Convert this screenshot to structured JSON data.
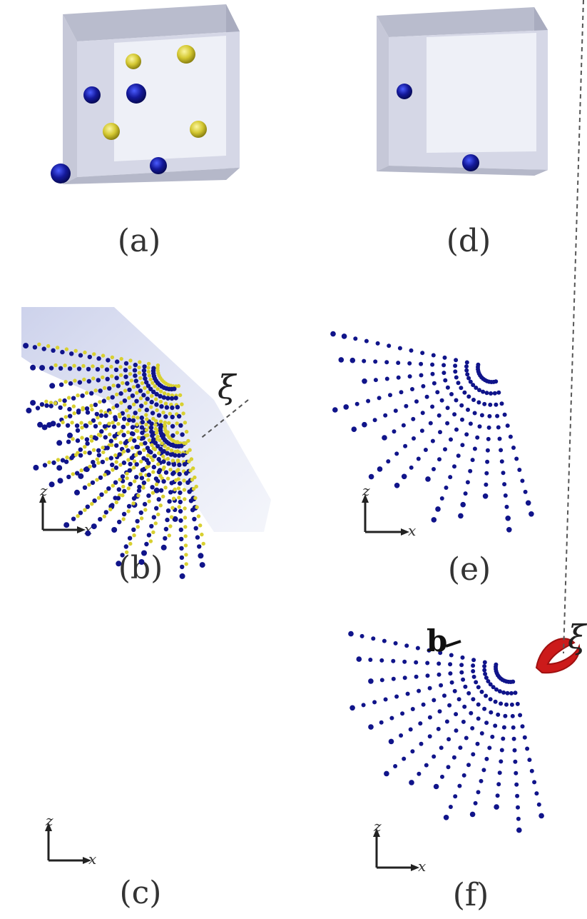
{
  "captions": {
    "a": "(a)",
    "b": "(b)",
    "c": "(c)",
    "d": "(d)",
    "e": "(e)",
    "f": "(f)"
  },
  "axes": {
    "z": "z",
    "x": "x"
  },
  "annotations": {
    "xi_c": "ξ",
    "xi_f": "ξ",
    "b_f": "b"
  },
  "colors": {
    "atom_blue": "#10148a",
    "atom_yellow": "#d8d030",
    "box_face": "#d4d6e6",
    "box_inner": "#eceef6",
    "red_loop": "#cc1a1a"
  }
}
